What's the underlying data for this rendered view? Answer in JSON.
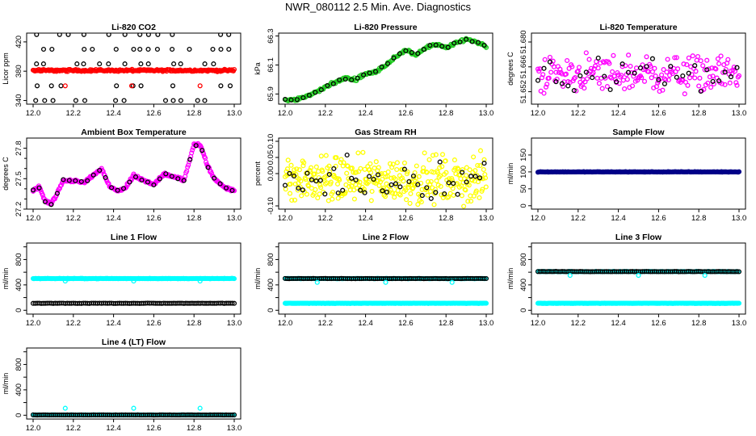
{
  "page_title": "NWR_080112  2.5 Min. Ave. Diagnostics",
  "colors": {
    "black": "#000000",
    "red": "#ff0000",
    "green": "#22cc22",
    "magenta": "#ff00ff",
    "yellow": "#ffff00",
    "cyan": "#00ffff",
    "navy": "#000088",
    "axis": "#000000"
  },
  "chart_data": [
    {
      "id": "co2",
      "type": "scatter",
      "title": "Li-820 CO2",
      "ylabel": "Licor ppm",
      "xlim": [
        12.0,
        13.0
      ],
      "ylim": [
        335,
        432
      ],
      "xticks": [
        12.0,
        12.2,
        12.4,
        12.6,
        12.8,
        13.0
      ],
      "yticks": [
        340,
        380,
        420
      ],
      "yticks_label_axis": "rotated",
      "xtick_labels": [
        "12.0",
        "12.2",
        "12.4",
        "12.6",
        "12.8",
        "13.0"
      ],
      "ytick_labels": [
        "340",
        "380",
        "420"
      ],
      "series": [
        {
          "name": "ref-levels",
          "color": "black",
          "gen": "levels",
          "levels": [
            340,
            360,
            390,
            410,
            430
          ],
          "step": 0.04,
          "start": 12.01
        },
        {
          "name": "sample",
          "color": "red",
          "gen": "flat",
          "center": 381,
          "noise": 1.2,
          "step": 0.004
        },
        {
          "name": "sample-outliers",
          "color": "red",
          "gen": "points",
          "x": [
            12.16,
            12.49,
            12.83
          ],
          "y": [
            360,
            360,
            360
          ]
        }
      ]
    },
    {
      "id": "pressure",
      "type": "scatter",
      "title": "Li-820 Pressure",
      "ylabel": "kPa",
      "xlim": [
        12.0,
        13.0
      ],
      "ylim": [
        65.83,
        66.32
      ],
      "xticks": [
        12.0,
        12.2,
        12.4,
        12.6,
        12.8,
        13.0
      ],
      "yticks": [
        65.9,
        66.1,
        66.3
      ],
      "xtick_labels": [
        "12.0",
        "12.2",
        "12.4",
        "12.6",
        "12.8",
        "13.0"
      ],
      "ytick_labels": [
        "65.9",
        "66.1",
        "66.3"
      ],
      "series": [
        {
          "name": "pressure",
          "color": "green",
          "gen": "curve",
          "step": 0.005,
          "curve_x": [
            12.0,
            12.05,
            12.1,
            12.15,
            12.2,
            12.25,
            12.3,
            12.35,
            12.4,
            12.45,
            12.5,
            12.55,
            12.6,
            12.65,
            12.7,
            12.75,
            12.8,
            12.85,
            12.9,
            12.95,
            13.0
          ],
          "curve_y": [
            65.86,
            65.86,
            65.88,
            65.91,
            65.95,
            65.98,
            66.01,
            66.0,
            66.04,
            66.05,
            66.1,
            66.16,
            66.2,
            66.17,
            66.22,
            66.24,
            66.22,
            66.25,
            66.28,
            66.26,
            66.23
          ],
          "noise": 0.008
        },
        {
          "name": "pressure-ref",
          "color": "black",
          "gen": "curve",
          "step": 0.03,
          "curve_x": [
            12.0,
            12.05,
            12.1,
            12.15,
            12.2,
            12.25,
            12.3,
            12.35,
            12.4,
            12.45,
            12.5,
            12.55,
            12.6,
            12.65,
            12.7,
            12.75,
            12.8,
            12.85,
            12.9,
            12.95,
            13.0
          ],
          "curve_y": [
            65.86,
            65.86,
            65.88,
            65.91,
            65.95,
            65.98,
            66.01,
            66.0,
            66.04,
            66.05,
            66.1,
            66.16,
            66.2,
            66.17,
            66.22,
            66.24,
            66.22,
            66.25,
            66.28,
            66.26,
            66.23
          ],
          "noise": 0.006
        }
      ]
    },
    {
      "id": "temperature",
      "type": "scatter",
      "title": "Li-820 Temperature",
      "ylabel": "degrees C",
      "xlim": [
        12.0,
        13.0
      ],
      "ylim": [
        51.645,
        51.685
      ],
      "xticks": [
        12.0,
        12.2,
        12.4,
        12.6,
        12.8,
        13.0
      ],
      "yticks": [
        51.652,
        51.666,
        51.68
      ],
      "xtick_labels": [
        "12.0",
        "12.2",
        "12.4",
        "12.6",
        "12.8",
        "13.0"
      ],
      "ytick_labels": [
        "51.652",
        "51.666",
        "51.680"
      ],
      "series": [
        {
          "name": "temp",
          "color": "magenta",
          "gen": "flat",
          "center": 51.662,
          "noise": 0.009,
          "step": 0.005
        },
        {
          "name": "temp-ref",
          "color": "black",
          "gen": "flat",
          "center": 51.661,
          "noise": 0.008,
          "step": 0.03
        }
      ]
    },
    {
      "id": "ambient",
      "type": "scatter",
      "title": "Ambient Box Temperature",
      "ylabel": "degrees C",
      "xlim": [
        12.0,
        13.0
      ],
      "ylim": [
        27.2,
        27.9
      ],
      "xticks": [
        12.0,
        12.2,
        12.4,
        12.6,
        12.8,
        13.0
      ],
      "yticks": [
        27.2,
        27.5,
        27.8
      ],
      "yticks_minor": [
        27.3,
        27.4,
        27.6,
        27.7
      ],
      "xtick_labels": [
        "12.0",
        "12.2",
        "12.4",
        "12.6",
        "12.8",
        "13.0"
      ],
      "ytick_labels": [
        "27.2",
        "27.5",
        "27.8"
      ],
      "series": [
        {
          "name": "ambient",
          "color": "magenta",
          "gen": "curve",
          "step": 0.004,
          "curve_x": [
            12.0,
            12.03,
            12.06,
            12.09,
            12.12,
            12.15,
            12.2,
            12.25,
            12.3,
            12.34,
            12.38,
            12.42,
            12.46,
            12.5,
            12.55,
            12.6,
            12.65,
            12.7,
            12.75,
            12.8,
            12.83,
            12.87,
            12.9,
            12.95,
            13.0
          ],
          "curve_y": [
            27.38,
            27.42,
            27.28,
            27.25,
            27.35,
            27.48,
            27.48,
            27.46,
            27.53,
            27.6,
            27.42,
            27.38,
            27.41,
            27.53,
            27.48,
            27.44,
            27.55,
            27.52,
            27.48,
            27.84,
            27.83,
            27.62,
            27.5,
            27.42,
            27.38
          ],
          "noise": 0.012
        },
        {
          "name": "ambient-ref",
          "color": "black",
          "gen": "curve",
          "step": 0.03,
          "curve_x": [
            12.0,
            12.03,
            12.06,
            12.09,
            12.12,
            12.15,
            12.2,
            12.25,
            12.3,
            12.34,
            12.38,
            12.42,
            12.46,
            12.5,
            12.55,
            12.6,
            12.65,
            12.7,
            12.75,
            12.8,
            12.83,
            12.87,
            12.9,
            12.95,
            13.0
          ],
          "curve_y": [
            27.38,
            27.42,
            27.28,
            27.25,
            27.35,
            27.48,
            27.48,
            27.46,
            27.53,
            27.6,
            27.42,
            27.38,
            27.41,
            27.53,
            27.48,
            27.44,
            27.55,
            27.52,
            27.48,
            27.84,
            27.83,
            27.62,
            27.5,
            27.42,
            27.38
          ],
          "noise": 0.01
        }
      ]
    },
    {
      "id": "rh",
      "type": "scatter",
      "title": "Gas Stream RH",
      "ylabel": "percent",
      "xlim": [
        12.0,
        13.0
      ],
      "ylim": [
        -0.11,
        0.11
      ],
      "xticks": [
        12.0,
        12.2,
        12.4,
        12.6,
        12.8,
        13.0
      ],
      "yticks": [
        -0.1,
        0.0,
        0.05,
        0.1
      ],
      "xtick_labels": [
        "12.0",
        "12.2",
        "12.4",
        "12.6",
        "12.8",
        "13.0"
      ],
      "ytick_labels": [
        "-0.10",
        "0.00",
        "0.05",
        "0.10"
      ],
      "series": [
        {
          "name": "rh",
          "color": "yellow",
          "gen": "flat",
          "center": -0.02,
          "noise": 0.06,
          "step": 0.003
        },
        {
          "name": "rh-ref",
          "color": "black",
          "gen": "flat",
          "center": -0.02,
          "noise": 0.05,
          "step": 0.022
        }
      ]
    },
    {
      "id": "sample-flow",
      "type": "scatter",
      "title": "Sample Flow",
      "ylabel": "ml/min",
      "xlim": [
        12.0,
        13.0
      ],
      "ylim": [
        -10,
        200
      ],
      "xticks": [
        12.0,
        12.2,
        12.4,
        12.6,
        12.8,
        13.0
      ],
      "yticks": [
        0,
        50,
        100,
        150
      ],
      "xtick_labels": [
        "12.0",
        "12.2",
        "12.4",
        "12.6",
        "12.8",
        "13.0"
      ],
      "ytick_labels": [
        "0",
        "50",
        "100",
        "150"
      ],
      "series": [
        {
          "name": "sample-flow",
          "color": "navy",
          "gen": "flat",
          "center": 100,
          "noise": 0.6,
          "step": 0.004
        }
      ]
    },
    {
      "id": "line1",
      "type": "scatter",
      "title": "Line 1 Flow",
      "ylabel": "ml/min",
      "xlim": [
        12.0,
        13.0
      ],
      "ylim": [
        -60,
        1060
      ],
      "xticks": [
        12.0,
        12.2,
        12.4,
        12.6,
        12.8,
        13.0
      ],
      "yticks": [
        0,
        200,
        400,
        600,
        800,
        1000
      ],
      "xtick_labels": [
        "12.0",
        "12.2",
        "12.4",
        "12.6",
        "12.8",
        "13.0"
      ],
      "ytick_labels": [
        "0",
        "",
        "400",
        "",
        "800",
        ""
      ],
      "series": [
        {
          "name": "line1-high",
          "color": "cyan",
          "gen": "flat",
          "center": 500,
          "noise": 3,
          "step": 0.004
        },
        {
          "name": "line1-dips",
          "color": "cyan",
          "gen": "points",
          "x": [
            12.16,
            12.5,
            12.83
          ],
          "y": [
            460,
            460,
            460
          ]
        },
        {
          "name": "line1-low",
          "color": "black",
          "gen": "flat",
          "center": 110,
          "noise": 2,
          "step": 0.01
        }
      ]
    },
    {
      "id": "line2",
      "type": "scatter",
      "title": "Line 2 Flow",
      "ylabel": "ml/min",
      "xlim": [
        12.0,
        13.0
      ],
      "ylim": [
        -60,
        1060
      ],
      "xticks": [
        12.0,
        12.2,
        12.4,
        12.6,
        12.8,
        13.0
      ],
      "yticks": [
        0,
        200,
        400,
        600,
        800,
        1000
      ],
      "xtick_labels": [
        "12.0",
        "12.2",
        "12.4",
        "12.6",
        "12.8",
        "13.0"
      ],
      "ytick_labels": [
        "0",
        "",
        "400",
        "",
        "800",
        ""
      ],
      "series": [
        {
          "name": "line2-high-cyan",
          "color": "cyan",
          "gen": "flat",
          "center": 500,
          "noise": 3,
          "step": 0.006
        },
        {
          "name": "line2-high",
          "color": "black",
          "gen": "flat",
          "center": 500,
          "noise": 2,
          "step": 0.01
        },
        {
          "name": "line2-dips",
          "color": "cyan",
          "gen": "points",
          "x": [
            12.16,
            12.5,
            12.83
          ],
          "y": [
            440,
            440,
            440
          ]
        },
        {
          "name": "line2-low",
          "color": "cyan",
          "gen": "flat",
          "center": 110,
          "noise": 2,
          "step": 0.004
        }
      ]
    },
    {
      "id": "line3",
      "type": "scatter",
      "title": "Line 3 Flow",
      "ylabel": "ml/min",
      "xlim": [
        12.0,
        13.0
      ],
      "ylim": [
        -60,
        1060
      ],
      "xticks": [
        12.0,
        12.2,
        12.4,
        12.6,
        12.8,
        13.0
      ],
      "yticks": [
        0,
        200,
        400,
        600,
        800,
        1000
      ],
      "xtick_labels": [
        "12.0",
        "12.2",
        "12.4",
        "12.6",
        "12.8",
        "13.0"
      ],
      "ytick_labels": [
        "0",
        "",
        "400",
        "",
        "800",
        ""
      ],
      "series": [
        {
          "name": "line3-high-cyan",
          "color": "cyan",
          "gen": "flat",
          "center": 610,
          "noise": 3,
          "step": 0.006
        },
        {
          "name": "line3-high",
          "color": "black",
          "gen": "flat",
          "center": 610,
          "noise": 2,
          "step": 0.01
        },
        {
          "name": "line3-dips",
          "color": "cyan",
          "gen": "points",
          "x": [
            12.16,
            12.5,
            12.83
          ],
          "y": [
            550,
            550,
            550
          ]
        },
        {
          "name": "line3-low",
          "color": "cyan",
          "gen": "flat",
          "center": 110,
          "noise": 2,
          "step": 0.004
        }
      ]
    },
    {
      "id": "line4",
      "type": "scatter",
      "title": "Line 4 (LT) Flow",
      "ylabel": "ml/min",
      "xlim": [
        12.0,
        13.0
      ],
      "ylim": [
        -60,
        1060
      ],
      "xticks": [
        12.0,
        12.2,
        12.4,
        12.6,
        12.8,
        13.0
      ],
      "yticks": [
        0,
        200,
        400,
        600,
        800,
        1000
      ],
      "xtick_labels": [
        "12.0",
        "12.2",
        "12.4",
        "12.6",
        "12.8",
        "13.0"
      ],
      "ytick_labels": [
        "0",
        "",
        "400",
        "",
        "800",
        ""
      ],
      "series": [
        {
          "name": "line4",
          "color": "cyan",
          "gen": "flat",
          "center": 5,
          "noise": 1.5,
          "step": 0.004
        },
        {
          "name": "line4-ref",
          "color": "black",
          "gen": "flat",
          "center": 5,
          "noise": 1.5,
          "step": 0.01
        },
        {
          "name": "line4-spikes",
          "color": "cyan",
          "gen": "points",
          "x": [
            12.16,
            12.5,
            12.83
          ],
          "y": [
            110,
            110,
            110
          ]
        }
      ]
    }
  ]
}
